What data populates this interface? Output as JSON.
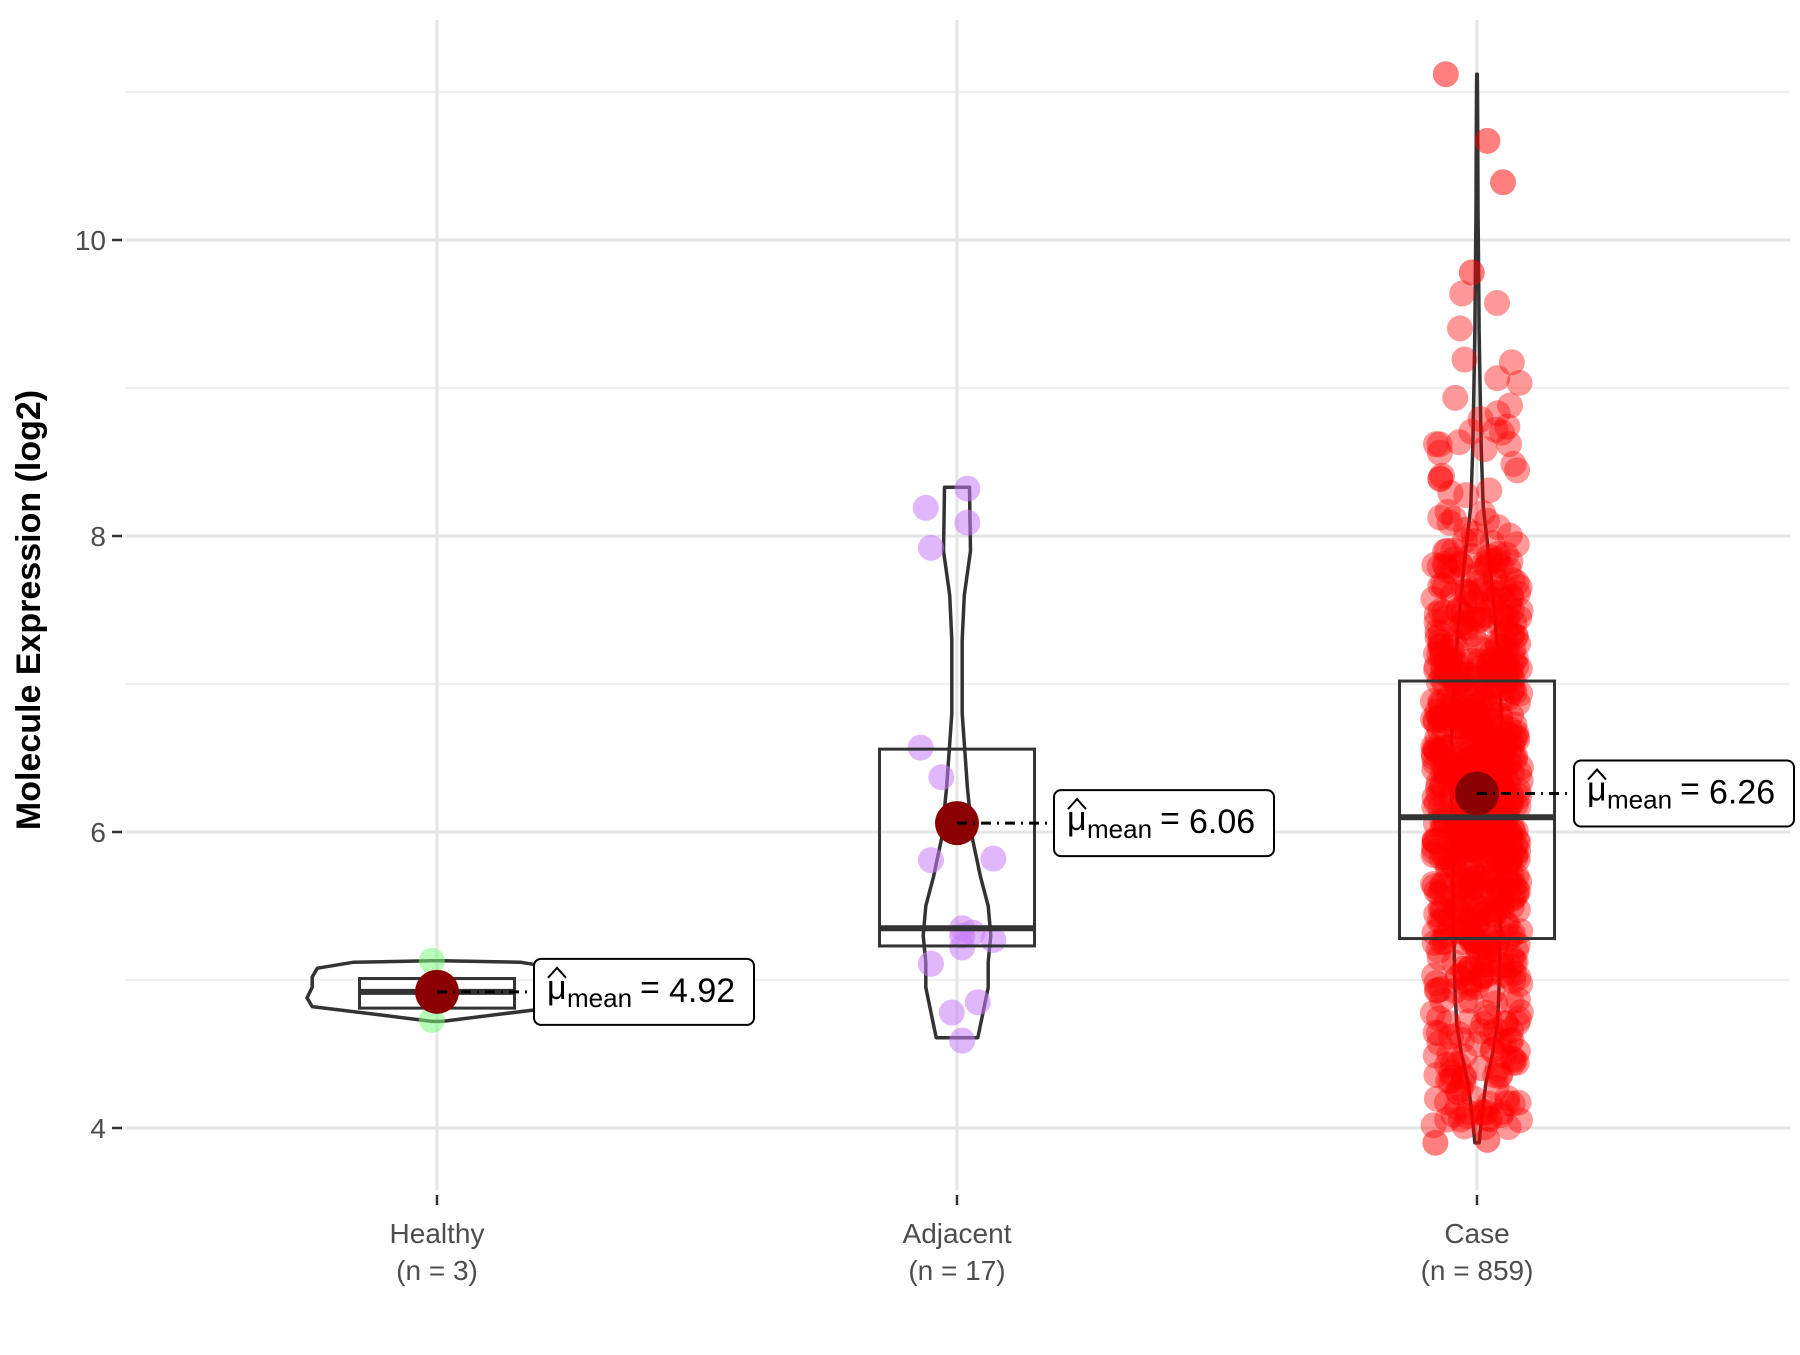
{
  "chart_data": {
    "type": "violin-box-jitter",
    "title": "",
    "xlabel": "",
    "ylabel": "Molecule Expression (log2)",
    "ylim": [
      3.5,
      11.5
    ],
    "y_ticks": [
      4,
      6,
      8,
      10
    ],
    "grid": true,
    "categories": [
      {
        "name": "Healthy",
        "n_label": "(n = 3)",
        "color": "#7CFC7C",
        "mean": 4.92,
        "mean_text": "4.92",
        "box": {
          "q1": 4.81,
          "median": 4.92,
          "q3": 5.01
        },
        "violin": [
          [
            4.72,
            0.01
          ],
          [
            4.76,
            0.1
          ],
          [
            4.82,
            0.24
          ],
          [
            4.88,
            0.25
          ],
          [
            4.95,
            0.24
          ],
          [
            5.02,
            0.24
          ],
          [
            5.08,
            0.23
          ],
          [
            5.12,
            0.16
          ],
          [
            5.13,
            0.01
          ]
        ],
        "points": [
          [
            -0.01,
            4.73
          ],
          [
            0.0,
            4.92
          ],
          [
            -0.01,
            5.13
          ]
        ]
      },
      {
        "name": "Adjacent",
        "n_label": "(n = 17)",
        "color": "#C87CFA",
        "mean": 6.06,
        "mean_text": "6.06",
        "box": {
          "q1": 5.23,
          "median": 5.35,
          "q3": 6.56
        },
        "violin": [
          [
            4.61,
            0.04
          ],
          [
            4.78,
            0.05
          ],
          [
            4.95,
            0.06
          ],
          [
            5.12,
            0.06
          ],
          [
            5.3,
            0.065
          ],
          [
            5.5,
            0.06
          ],
          [
            5.7,
            0.045
          ],
          [
            5.95,
            0.03
          ],
          [
            6.3,
            0.02
          ],
          [
            6.8,
            0.01
          ],
          [
            7.3,
            0.01
          ],
          [
            7.6,
            0.014
          ],
          [
            7.9,
            0.026
          ],
          [
            8.1,
            0.025
          ],
          [
            8.33,
            0.024
          ]
        ],
        "points": [
          [
            -0.06,
            8.19
          ],
          [
            0.02,
            8.32
          ],
          [
            0.02,
            8.09
          ],
          [
            -0.05,
            7.92
          ],
          [
            -0.07,
            6.57
          ],
          [
            -0.03,
            6.37
          ],
          [
            0.07,
            5.82
          ],
          [
            -0.05,
            5.81
          ],
          [
            0.01,
            5.35
          ],
          [
            0.01,
            5.3
          ],
          [
            0.03,
            5.32
          ],
          [
            0.07,
            5.27
          ],
          [
            0.01,
            5.22
          ],
          [
            -0.05,
            5.11
          ],
          [
            0.04,
            4.85
          ],
          [
            -0.01,
            4.78
          ],
          [
            0.01,
            4.59
          ]
        ],
        "points_note": ""
      },
      {
        "name": "Case",
        "n_label": "(n = 859)",
        "color": "#FF0000",
        "mean": 6.26,
        "mean_text": "6.26",
        "box": {
          "q1": 5.28,
          "median": 6.1,
          "q3": 7.02
        },
        "violin": [
          [
            3.9,
            0.004
          ],
          [
            4.1,
            0.01
          ],
          [
            4.3,
            0.017
          ],
          [
            4.5,
            0.03
          ],
          [
            4.7,
            0.039
          ],
          [
            4.9,
            0.042
          ],
          [
            5.2,
            0.044
          ],
          [
            5.6,
            0.046
          ],
          [
            6.0,
            0.048
          ],
          [
            6.3,
            0.05
          ],
          [
            6.6,
            0.049
          ],
          [
            7.0,
            0.044
          ],
          [
            7.4,
            0.036
          ],
          [
            7.8,
            0.025
          ],
          [
            8.2,
            0.012
          ],
          [
            8.6,
            0.008
          ],
          [
            9.0,
            0.006
          ],
          [
            9.4,
            0.004
          ],
          [
            9.8,
            0.003
          ],
          [
            10.2,
            0.002
          ],
          [
            10.6,
            0.0015
          ],
          [
            11.0,
            0.001
          ],
          [
            11.12,
            0.0005
          ]
        ],
        "point_count": 859,
        "points_extreme": [
          [
            -0.06,
            11.12
          ],
          [
            0.02,
            10.67
          ],
          [
            0.05,
            10.39
          ],
          [
            -0.01,
            9.78
          ],
          [
            -0.08,
            3.9
          ],
          [
            0.02,
            3.92
          ]
        ]
      }
    ]
  },
  "mean_label_prefix": "μ",
  "mean_label_sub": "mean",
  "mean_label_eq": "="
}
